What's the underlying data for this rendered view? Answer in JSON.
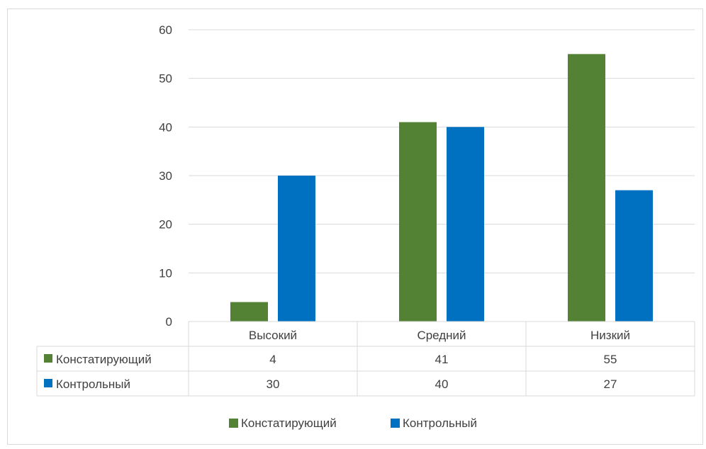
{
  "chart_data": {
    "type": "bar",
    "categories": [
      "Высокий",
      "Средний",
      "Низкий"
    ],
    "series": [
      {
        "name": "Констатирующий",
        "values": [
          4,
          41,
          55
        ],
        "color": "#548235"
      },
      {
        "name": "Контрольный",
        "values": [
          30,
          40,
          27
        ],
        "color": "#0070c0"
      }
    ],
    "ylim": [
      0,
      60
    ],
    "yticks": [
      0,
      10,
      20,
      30,
      40,
      50,
      60
    ],
    "grid": true,
    "data_table": true,
    "legend_position": "bottom"
  }
}
